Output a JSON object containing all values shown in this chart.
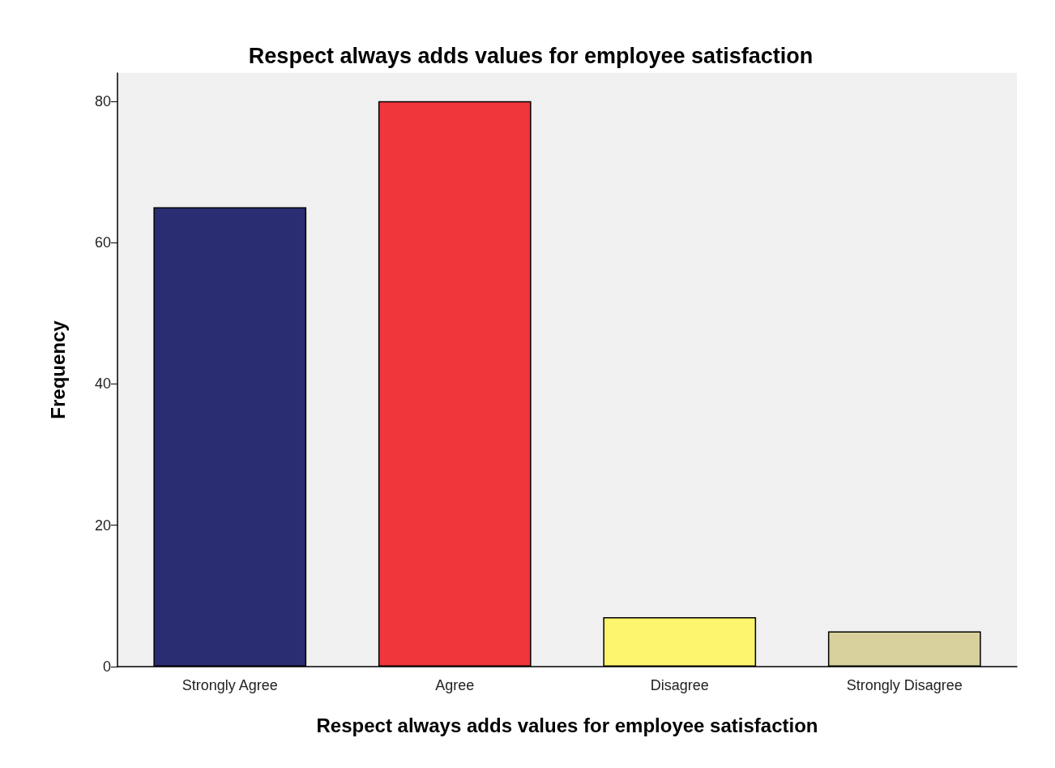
{
  "chart_data": {
    "type": "bar",
    "title": "Respect always adds values for employee satisfaction",
    "xlabel": "Respect always adds values for employee satisfaction",
    "ylabel": "Frequency",
    "categories": [
      "Strongly Agree",
      "Agree",
      "Disagree",
      "Strongly Disagree"
    ],
    "values": [
      65,
      80,
      7,
      5
    ],
    "colors": [
      "#2b2d72",
      "#f0363b",
      "#fdf56e",
      "#d7d09c"
    ],
    "ylim": [
      0,
      84
    ],
    "yticks": [
      0,
      20,
      40,
      60,
      80
    ]
  }
}
